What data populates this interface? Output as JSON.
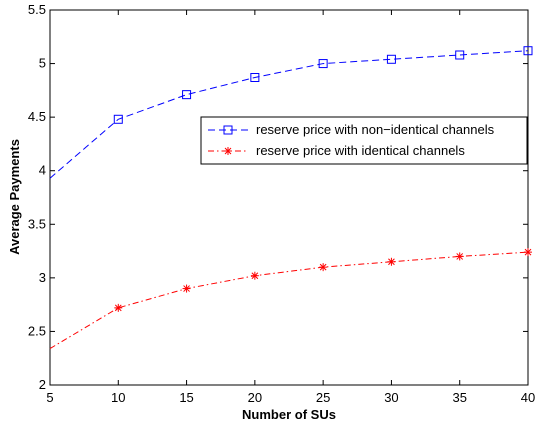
{
  "chart_data": {
    "type": "line",
    "title": "",
    "xlabel": "Number of SUs",
    "ylabel": "Average Payments",
    "xlim": [
      5,
      40
    ],
    "ylim": [
      2,
      5.5
    ],
    "x_ticks": [
      "5",
      "10",
      "15",
      "20",
      "25",
      "30",
      "35",
      "40"
    ],
    "y_ticks": [
      "2",
      "2.5",
      "3",
      "3.5",
      "4",
      "4.5",
      "5",
      "5.5"
    ],
    "grid": false,
    "legend_position": "center-right",
    "series": [
      {
        "name": "reserve price with non−identical channels",
        "color": "#0000ff",
        "line_style": "dashed",
        "marker": "square",
        "x": [
          5,
          10,
          15,
          20,
          25,
          30,
          35,
          40
        ],
        "y": [
          3.93,
          4.48,
          4.71,
          4.87,
          5.0,
          5.04,
          5.08,
          5.12
        ]
      },
      {
        "name": "reserve price with identical channels",
        "color": "#ff0000",
        "line_style": "dash-dot",
        "marker": "star",
        "x": [
          5,
          10,
          15,
          20,
          25,
          30,
          35,
          40
        ],
        "y": [
          2.34,
          2.72,
          2.9,
          3.02,
          3.1,
          3.15,
          3.2,
          3.24
        ]
      }
    ]
  }
}
